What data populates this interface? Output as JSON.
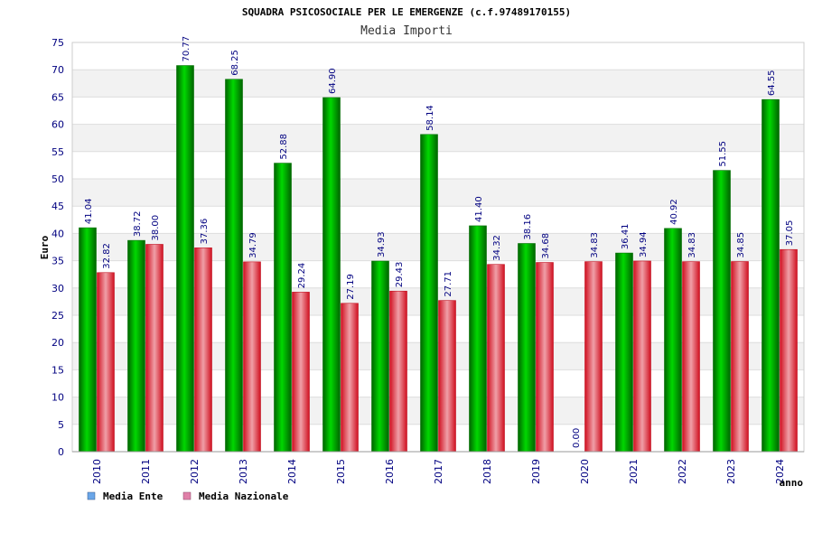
{
  "chart_data": {
    "type": "bar",
    "title": "SQUADRA PSICOSOCIALE PER LE EMERGENZE (c.f.97489170155)",
    "subtitle": "Media Importi",
    "ylabel": "Euro",
    "xlabel": "anno",
    "ylim": [
      0,
      75
    ],
    "yticks": [
      0,
      5,
      10,
      15,
      20,
      25,
      30,
      35,
      40,
      45,
      50,
      55,
      60,
      65,
      70,
      75
    ],
    "grid": true,
    "legend_position": "bottom-left",
    "categories": [
      "2010",
      "2011",
      "2012",
      "2013",
      "2014",
      "2015",
      "2016",
      "2017",
      "2018",
      "2019",
      "2020",
      "2021",
      "2022",
      "2023",
      "2024"
    ],
    "series": [
      {
        "name": "Media Ente",
        "legend_color": "#6aa6e8",
        "color": "#00b000",
        "values": [
          41.04,
          38.72,
          70.77,
          68.25,
          52.88,
          64.9,
          34.93,
          58.14,
          41.4,
          38.16,
          0.0,
          36.41,
          40.92,
          51.55,
          64.55
        ],
        "labels": [
          "41.04",
          "38.72",
          "70.77",
          "68.25",
          "52.88",
          "64.90",
          "34.93",
          "58.14",
          "41.40",
          "38.16",
          "0.00",
          "36.41",
          "40.92",
          "51.55",
          "64.55"
        ]
      },
      {
        "name": "Media Nazionale",
        "legend_color": "#e080a8",
        "color": "#e02030",
        "values": [
          32.82,
          38.0,
          37.36,
          34.79,
          29.24,
          27.19,
          29.43,
          27.71,
          34.32,
          34.68,
          34.83,
          34.94,
          34.83,
          34.85,
          37.05
        ],
        "labels": [
          "32.82",
          "38.00",
          "37.36",
          "34.79",
          "29.24",
          "27.19",
          "29.43",
          "27.71",
          "34.32",
          "34.68",
          "34.83",
          "34.94",
          "34.83",
          "34.85",
          "37.05"
        ]
      }
    ]
  }
}
